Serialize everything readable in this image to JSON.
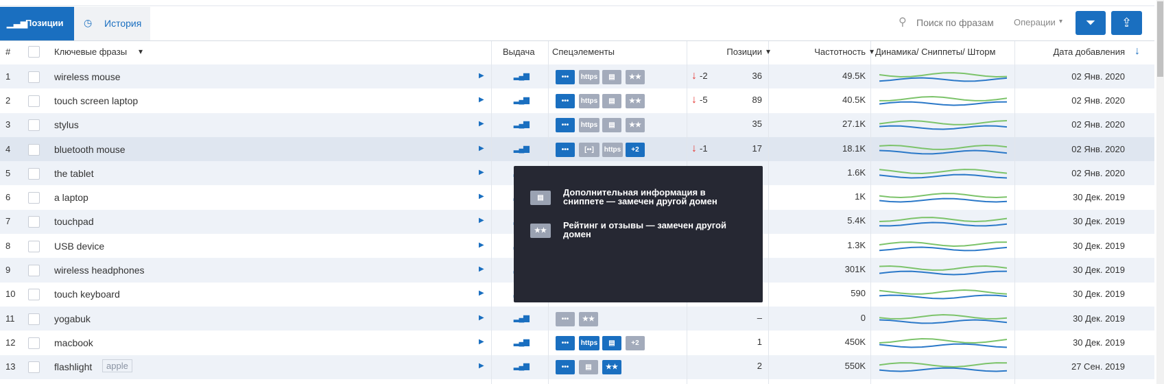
{
  "toolbar": {
    "tabs": [
      "Позиции",
      "История"
    ],
    "search_placeholder": "Поиск по фразам",
    "operations": "Операции"
  },
  "table": {
    "columns": [
      "#",
      "Ключевые фразы",
      "Выдача",
      "Спецэлементы",
      "Позиции",
      "Частотность",
      "Динамика/ Сниппеты/ Шторм",
      "Дата добавления"
    ],
    "badge_colors": {
      "active": "#1a6fc0",
      "inactive": "#a3abbb"
    },
    "rows": [
      {
        "num": 1,
        "phrase": "wireless mouse",
        "badges": [
          {
            "text": "•••",
            "state": "active"
          },
          {
            "text": "https",
            "state": "inactive"
          },
          {
            "text": "▤",
            "state": "inactive"
          },
          {
            "text": "★★",
            "state": "inactive"
          }
        ],
        "change": "-2",
        "position": 36,
        "frequency": "49.5K",
        "date": "02 Янв. 2020"
      },
      {
        "num": 2,
        "phrase": "touch screen laptop",
        "badges": [
          {
            "text": "•••",
            "state": "active"
          },
          {
            "text": "https",
            "state": "inactive"
          },
          {
            "text": "▤",
            "state": "inactive"
          },
          {
            "text": "★★",
            "state": "inactive"
          }
        ],
        "change": "-5",
        "position": 89,
        "frequency": "40.5K",
        "date": "02 Янв. 2020"
      },
      {
        "num": 3,
        "phrase": "stylus",
        "badges": [
          {
            "text": "•••",
            "state": "active"
          },
          {
            "text": "https",
            "state": "inactive"
          },
          {
            "text": "▤",
            "state": "inactive"
          },
          {
            "text": "★★",
            "state": "inactive"
          }
        ],
        "position": 35,
        "frequency": "27.1K",
        "date": "02 Янв. 2020"
      },
      {
        "num": 4,
        "phrase": "bluetooth mouse",
        "badges": [
          {
            "text": "•••",
            "state": "active"
          },
          {
            "text": "[••]",
            "state": "inactive"
          },
          {
            "text": "https",
            "state": "inactive"
          },
          {
            "text": "+2",
            "state": "active"
          }
        ],
        "change": "-1",
        "position": 17,
        "frequency": "18.1K",
        "date": "02 Янв. 2020"
      },
      {
        "num": 5,
        "phrase": "the tablet",
        "frequency": "1.6K",
        "date": "02 Янв. 2020"
      },
      {
        "num": 6,
        "phrase": "a laptop",
        "frequency": "1K",
        "date": "30 Дек. 2019"
      },
      {
        "num": 7,
        "phrase": "touchpad",
        "frequency": "5.4K",
        "date": "30 Дек. 2019"
      },
      {
        "num": 8,
        "phrase": "USB device",
        "frequency": "1.3K",
        "date": "30 Дек. 2019"
      },
      {
        "num": 9,
        "phrase": "wireless headphones",
        "frequency": "301K",
        "date": "30 Дек. 2019"
      },
      {
        "num": 10,
        "phrase": "touch keyboard",
        "frequency": "590",
        "date": "30 Дек. 2019"
      },
      {
        "num": 11,
        "phrase": "yogabuk",
        "badges": [
          {
            "text": "•••",
            "state": "inactive"
          },
          {
            "text": "★★",
            "state": "inactive"
          }
        ],
        "position": "–",
        "frequency": "0",
        "date": "30 Дек. 2019"
      },
      {
        "num": 12,
        "phrase": "macbook",
        "badges": [
          {
            "text": "•••",
            "state": "active"
          },
          {
            "text": "https",
            "state": "active"
          },
          {
            "text": "▤",
            "state": "active"
          },
          {
            "text": "+2",
            "state": "inactive"
          }
        ],
        "position": 1,
        "frequency": "450K",
        "date": "30 Дек. 2019"
      },
      {
        "num": 13,
        "phrase": "flashlight",
        "tag": "apple",
        "badges": [
          {
            "text": "•••",
            "state": "active"
          },
          {
            "text": "▤",
            "state": "inactive"
          },
          {
            "text": "★★",
            "state": "active"
          }
        ],
        "position": 2,
        "frequency": "550K",
        "date": "27 Сен. 2019"
      }
    ]
  },
  "tooltip": {
    "items": [
      {
        "icon": "▤",
        "text": "Дополнительная информация в сниппете — замечен другой домен"
      },
      {
        "icon": "★★",
        "text": "Рейтинг и отзывы — замечен другой домен"
      }
    ]
  }
}
